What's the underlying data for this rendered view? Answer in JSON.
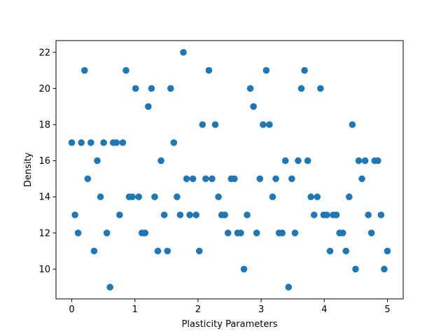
{
  "chart_data": {
    "type": "scatter",
    "title": "",
    "xlabel": "Plasticity Parameters",
    "ylabel": "Density",
    "xlim": [
      -0.25,
      5.25
    ],
    "ylim": [
      8.35,
      22.65
    ],
    "xticks": [
      0,
      1,
      2,
      3,
      4,
      5
    ],
    "yticks": [
      10,
      12,
      14,
      16,
      18,
      20,
      22
    ],
    "grid": false,
    "marker_color": "#1f77b4",
    "series": [
      {
        "x": [
          0.0,
          0.0505,
          0.101,
          0.1515,
          0.202,
          0.2525,
          0.303,
          0.3535,
          0.404,
          0.4545,
          0.5051,
          0.5556,
          0.6061,
          0.6566,
          0.7071,
          0.7576,
          0.8081,
          0.8586,
          0.9091,
          0.9596,
          1.0101,
          1.0606,
          1.1111,
          1.1616,
          1.2121,
          1.2626,
          1.3131,
          1.3636,
          1.4141,
          1.4646,
          1.5152,
          1.5657,
          1.6162,
          1.6667,
          1.7172,
          1.7677,
          1.8182,
          1.8687,
          1.9192,
          1.9697,
          2.0202,
          2.0707,
          2.1212,
          2.1717,
          2.2222,
          2.2727,
          2.3232,
          2.3737,
          2.4242,
          2.4747,
          2.5253,
          2.5758,
          2.6263,
          2.6768,
          2.7273,
          2.7778,
          2.8283,
          2.8788,
          2.9293,
          2.9798,
          3.0303,
          3.0808,
          3.1313,
          3.1818,
          3.2323,
          3.2828,
          3.3333,
          3.3838,
          3.4343,
          3.4848,
          3.5354,
          3.5859,
          3.6364,
          3.6869,
          3.7374,
          3.7879,
          3.8384,
          3.8889,
          3.9394,
          3.9899,
          4.0404,
          4.0909,
          4.1414,
          4.1919,
          4.2424,
          4.2929,
          4.3434,
          4.3939,
          4.4444,
          4.4949,
          4.5455,
          4.596,
          4.6465,
          4.697,
          4.7475,
          4.798,
          4.8485,
          4.899,
          4.9495,
          5.0
        ],
        "y": [
          17,
          13,
          12,
          17,
          21,
          15,
          17,
          11,
          16,
          14,
          17,
          12,
          9,
          17,
          17,
          13,
          17,
          21,
          14,
          14,
          20,
          14,
          12,
          12,
          19,
          20,
          14,
          11,
          16,
          13,
          11,
          20,
          17,
          14,
          13,
          22,
          15,
          13,
          15,
          13,
          11,
          18,
          15,
          21,
          15,
          18,
          14,
          13,
          13,
          12,
          15,
          15,
          12,
          12,
          10,
          13,
          20,
          19,
          12,
          15,
          18,
          21,
          18,
          14,
          15,
          12,
          12,
          16,
          9,
          15,
          12,
          16,
          20,
          21,
          16,
          14,
          13,
          14,
          20,
          13,
          13,
          11,
          13,
          13,
          12,
          12,
          11,
          14,
          18,
          10,
          16,
          15,
          16,
          13,
          12,
          16,
          16,
          13,
          10,
          11
        ]
      }
    ]
  }
}
